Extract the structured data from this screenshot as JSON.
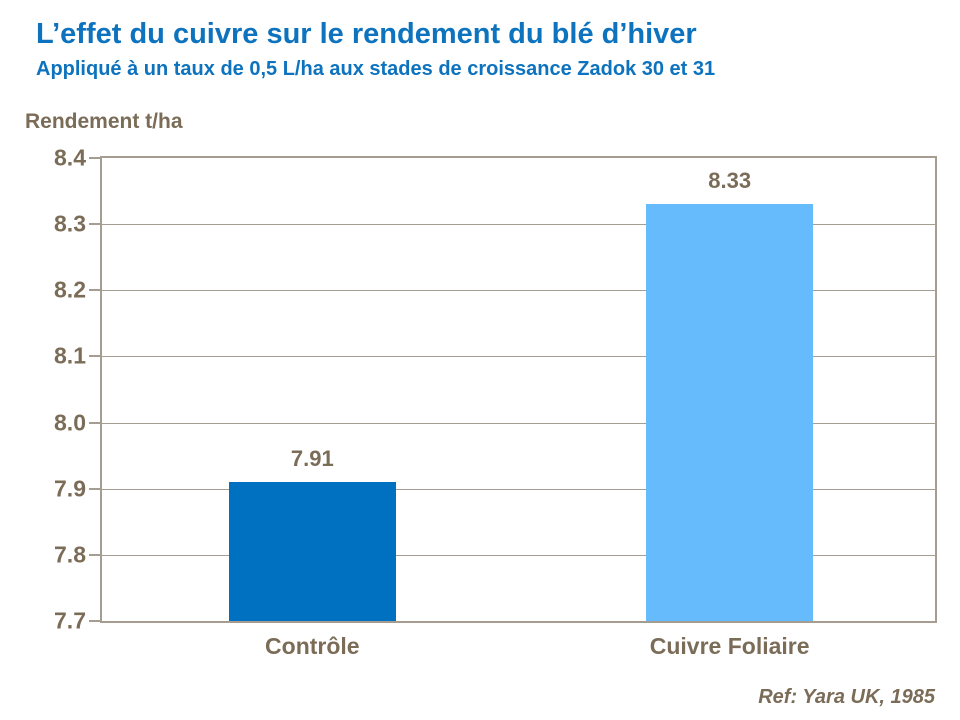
{
  "header": {
    "title": "L’effet du cuivre sur le rendement du blé d’hiver",
    "subtitle": "Appliqué à un taux de 0,5 L/ha aux stades de croissance Zadok 30 et 31"
  },
  "chart_data": {
    "type": "bar",
    "title": "L’effet du cuivre sur le rendement du blé d’hiver",
    "subtitle": "Appliqué à un taux de 0,5 L/ha aux stades de croissance Zadok 30 et 31",
    "ylabel": "Rendement t/ha",
    "xlabel": "",
    "categories": [
      "Contrôle",
      "Cuivre Foliaire"
    ],
    "values": [
      7.91,
      8.33
    ],
    "value_labels": [
      "7.91",
      "8.33"
    ],
    "bar_colors": [
      "#0070c0",
      "#66bbfc"
    ],
    "ylim": [
      7.7,
      8.4
    ],
    "ytick_step": 0.1,
    "yticks": [
      "8.4",
      "8.3",
      "8.2",
      "8.1",
      "8.0",
      "7.9",
      "7.8",
      "7.7"
    ],
    "grid": true,
    "legend": false
  },
  "footer": {
    "reference": "Ref: Yara UK, 1985"
  },
  "colors": {
    "title_blue": "#0e73be",
    "axis_brown": "#7b6c58",
    "grid_color": "#a69d92",
    "bar_control": "#0070c0",
    "bar_copper": "#66bbfc",
    "background": "#ffffff"
  }
}
